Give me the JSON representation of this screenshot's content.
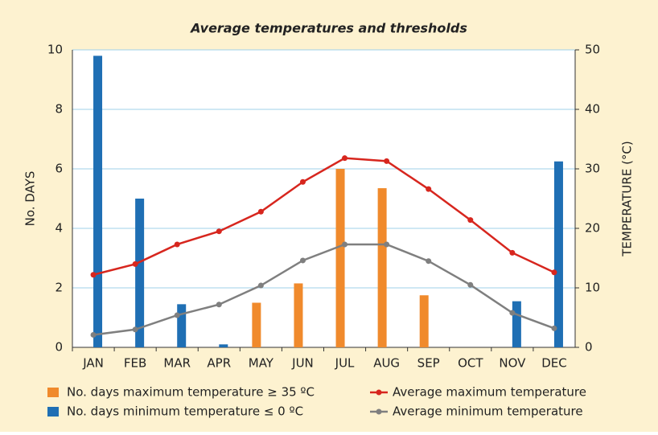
{
  "chart_data": {
    "type": "bar",
    "title": "Average temperatures and thresholds",
    "y_label": "No. DAYS",
    "y2_label": "TEMPERATURE (°C)",
    "categories": [
      "JAN",
      "FEB",
      "MAR",
      "APR",
      "MAY",
      "JUN",
      "JUL",
      "AUG",
      "SEP",
      "OCT",
      "NOV",
      "DEC"
    ],
    "ylim": [
      0,
      10
    ],
    "yticks": [
      0,
      2,
      4,
      6,
      8,
      10
    ],
    "y2lim": [
      0,
      50
    ],
    "y2ticks": [
      0,
      10,
      20,
      30,
      40,
      50
    ],
    "grid": true,
    "series": [
      {
        "name": "No. days maximum temperature ≥ 35 ºC",
        "type": "bar",
        "color": "#f08a2c",
        "values": [
          null,
          null,
          null,
          null,
          1.5,
          2.15,
          6.0,
          5.35,
          1.75,
          null,
          null,
          null
        ]
      },
      {
        "name": "No. days minimum temperature ≤ 0 ºC",
        "type": "bar",
        "color": "#1f6fb4",
        "values": [
          9.8,
          5.0,
          1.45,
          0.1,
          null,
          null,
          null,
          null,
          null,
          null,
          1.55,
          6.25
        ]
      },
      {
        "name": "Average maximum temperature",
        "type": "line",
        "axis": "y2",
        "color": "#d7261e",
        "values": [
          12.2,
          14.0,
          17.3,
          19.5,
          22.8,
          27.8,
          31.8,
          31.3,
          26.6,
          21.4,
          15.9,
          12.6
        ]
      },
      {
        "name": "Average minimum temperature",
        "type": "line",
        "axis": "y2",
        "color": "#7f7f7f",
        "values": [
          2.1,
          3.0,
          5.4,
          7.2,
          10.4,
          14.6,
          17.3,
          17.3,
          14.5,
          10.5,
          5.8,
          3.2
        ]
      }
    ]
  }
}
